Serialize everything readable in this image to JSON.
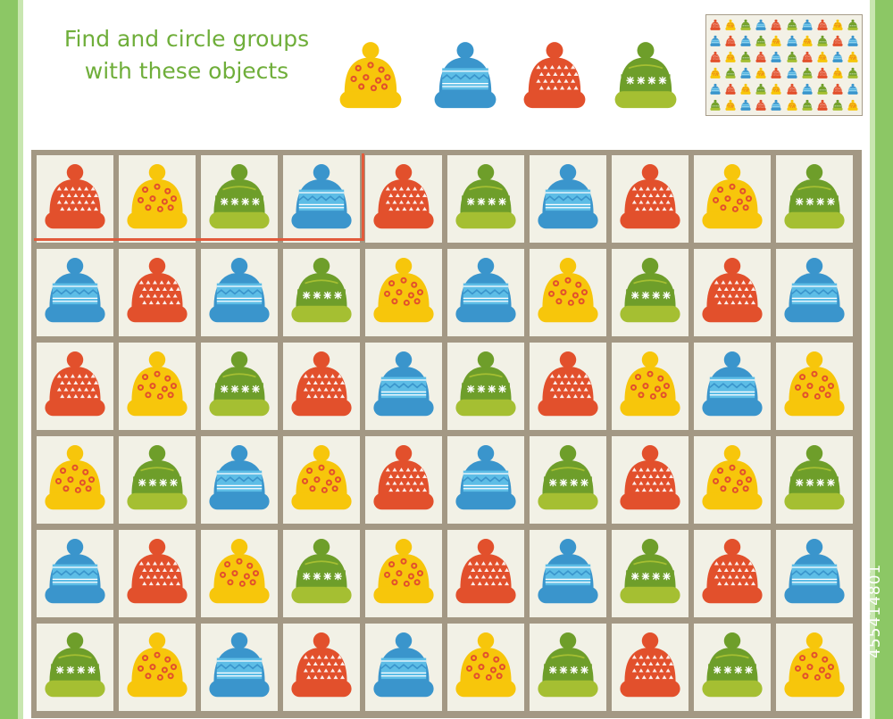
{
  "instruction": {
    "line1": "Find and circle groups",
    "line2": "with these objects"
  },
  "colors": {
    "red": "#e2502c",
    "yellow": "#f7c60b",
    "blue": "#3a95cc",
    "blue_light": "#5dbde6",
    "green": "#6e9e2a",
    "green_light": "#a5bf32",
    "cell_bg": "#f2f1e6",
    "grid_line": "#a39884",
    "frame_green": "#8cc765",
    "text_green": "#6fae3a",
    "mark_red": "#e25b3c"
  },
  "example_sequence": [
    "yellow",
    "blue",
    "red",
    "green"
  ],
  "hat_kinds": {
    "red": "red-triangle-hat",
    "yellow": "yellow-dotted-hat",
    "blue": "blue-zigzag-hat",
    "green": "green-snowflake-hat"
  },
  "grid": {
    "rows": [
      [
        "red",
        "yellow",
        "green",
        "blue",
        "red",
        "green",
        "blue",
        "red",
        "yellow",
        "green"
      ],
      [
        "blue",
        "red",
        "blue",
        "green",
        "yellow",
        "blue",
        "yellow",
        "green",
        "red",
        "blue"
      ],
      [
        "red",
        "yellow",
        "green",
        "red",
        "blue",
        "green",
        "red",
        "yellow",
        "blue",
        "yellow"
      ],
      [
        "yellow",
        "green",
        "blue",
        "yellow",
        "red",
        "blue",
        "green",
        "red",
        "yellow",
        "green"
      ],
      [
        "blue",
        "red",
        "yellow",
        "green",
        "yellow",
        "red",
        "blue",
        "green",
        "red",
        "blue"
      ],
      [
        "green",
        "yellow",
        "blue",
        "red",
        "blue",
        "yellow",
        "green",
        "red",
        "green",
        "yellow"
      ]
    ],
    "sample_solution": {
      "row": 0,
      "start_col": 0,
      "length": 4
    }
  },
  "watermark": "455414801"
}
